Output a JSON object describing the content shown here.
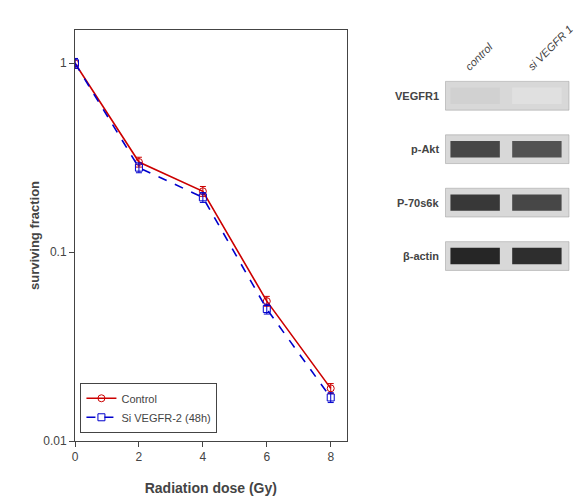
{
  "chart_data": {
    "type": "line",
    "title": "",
    "xlabel": "Radiation dose (Gy)",
    "ylabel": "surviving fraction",
    "log": "y",
    "xlim": [
      0,
      8.5
    ],
    "xticks": [
      0,
      2,
      4,
      6,
      8
    ],
    "ylim": [
      0.01,
      1.5
    ],
    "yticks": [
      0.01,
      0.1,
      1
    ],
    "grid": false,
    "legend": "lower left",
    "x": [
      0,
      2,
      4,
      6,
      8
    ],
    "series": [
      {
        "name": "Control",
        "color": "#cc0000",
        "marker": "circle",
        "line_style": "solid",
        "values": [
          1.0,
          0.3,
          0.21,
          0.055,
          0.019
        ],
        "errors": [
          0.06,
          0.018,
          0.0126,
          0.0033,
          0.00114
        ]
      },
      {
        "name": "Si VEGFR-2 (48h)",
        "color": "#0000cc",
        "marker": "square",
        "line_style": "dash",
        "values": [
          1.0,
          0.28,
          0.195,
          0.05,
          0.017
        ],
        "errors": [
          0.06,
          0.0168,
          0.0117,
          0.003,
          0.00102
        ]
      }
    ],
    "annotations": [
      "control",
      "si VEGFR 1",
      "VEGFR1",
      "p-Akt",
      "P-70s6k",
      "β-actin"
    ]
  }
}
